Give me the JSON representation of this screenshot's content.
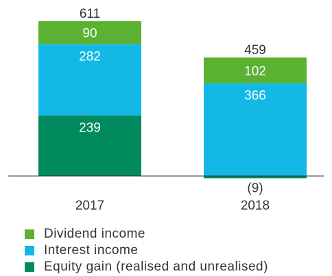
{
  "chart_data": {
    "type": "bar",
    "stacked": true,
    "categories": [
      "2017",
      "2018"
    ],
    "series": [
      {
        "name": "Equity gain (realised and unrealised)",
        "values": [
          239,
          -9
        ],
        "labels": [
          "239",
          "(9)"
        ],
        "color": "#008a5e"
      },
      {
        "name": "Interest income",
        "values": [
          282,
          366
        ],
        "labels": [
          "282",
          "366"
        ],
        "color": "#12b8e6"
      },
      {
        "name": "Dividend income",
        "values": [
          90,
          102
        ],
        "labels": [
          "90",
          "102"
        ],
        "color": "#5bb132"
      }
    ],
    "totals": [
      611,
      459
    ],
    "total_labels": [
      "611",
      "459"
    ],
    "ylim": [
      -9,
      611
    ],
    "grid": false,
    "legend_position": "bottom-left"
  }
}
